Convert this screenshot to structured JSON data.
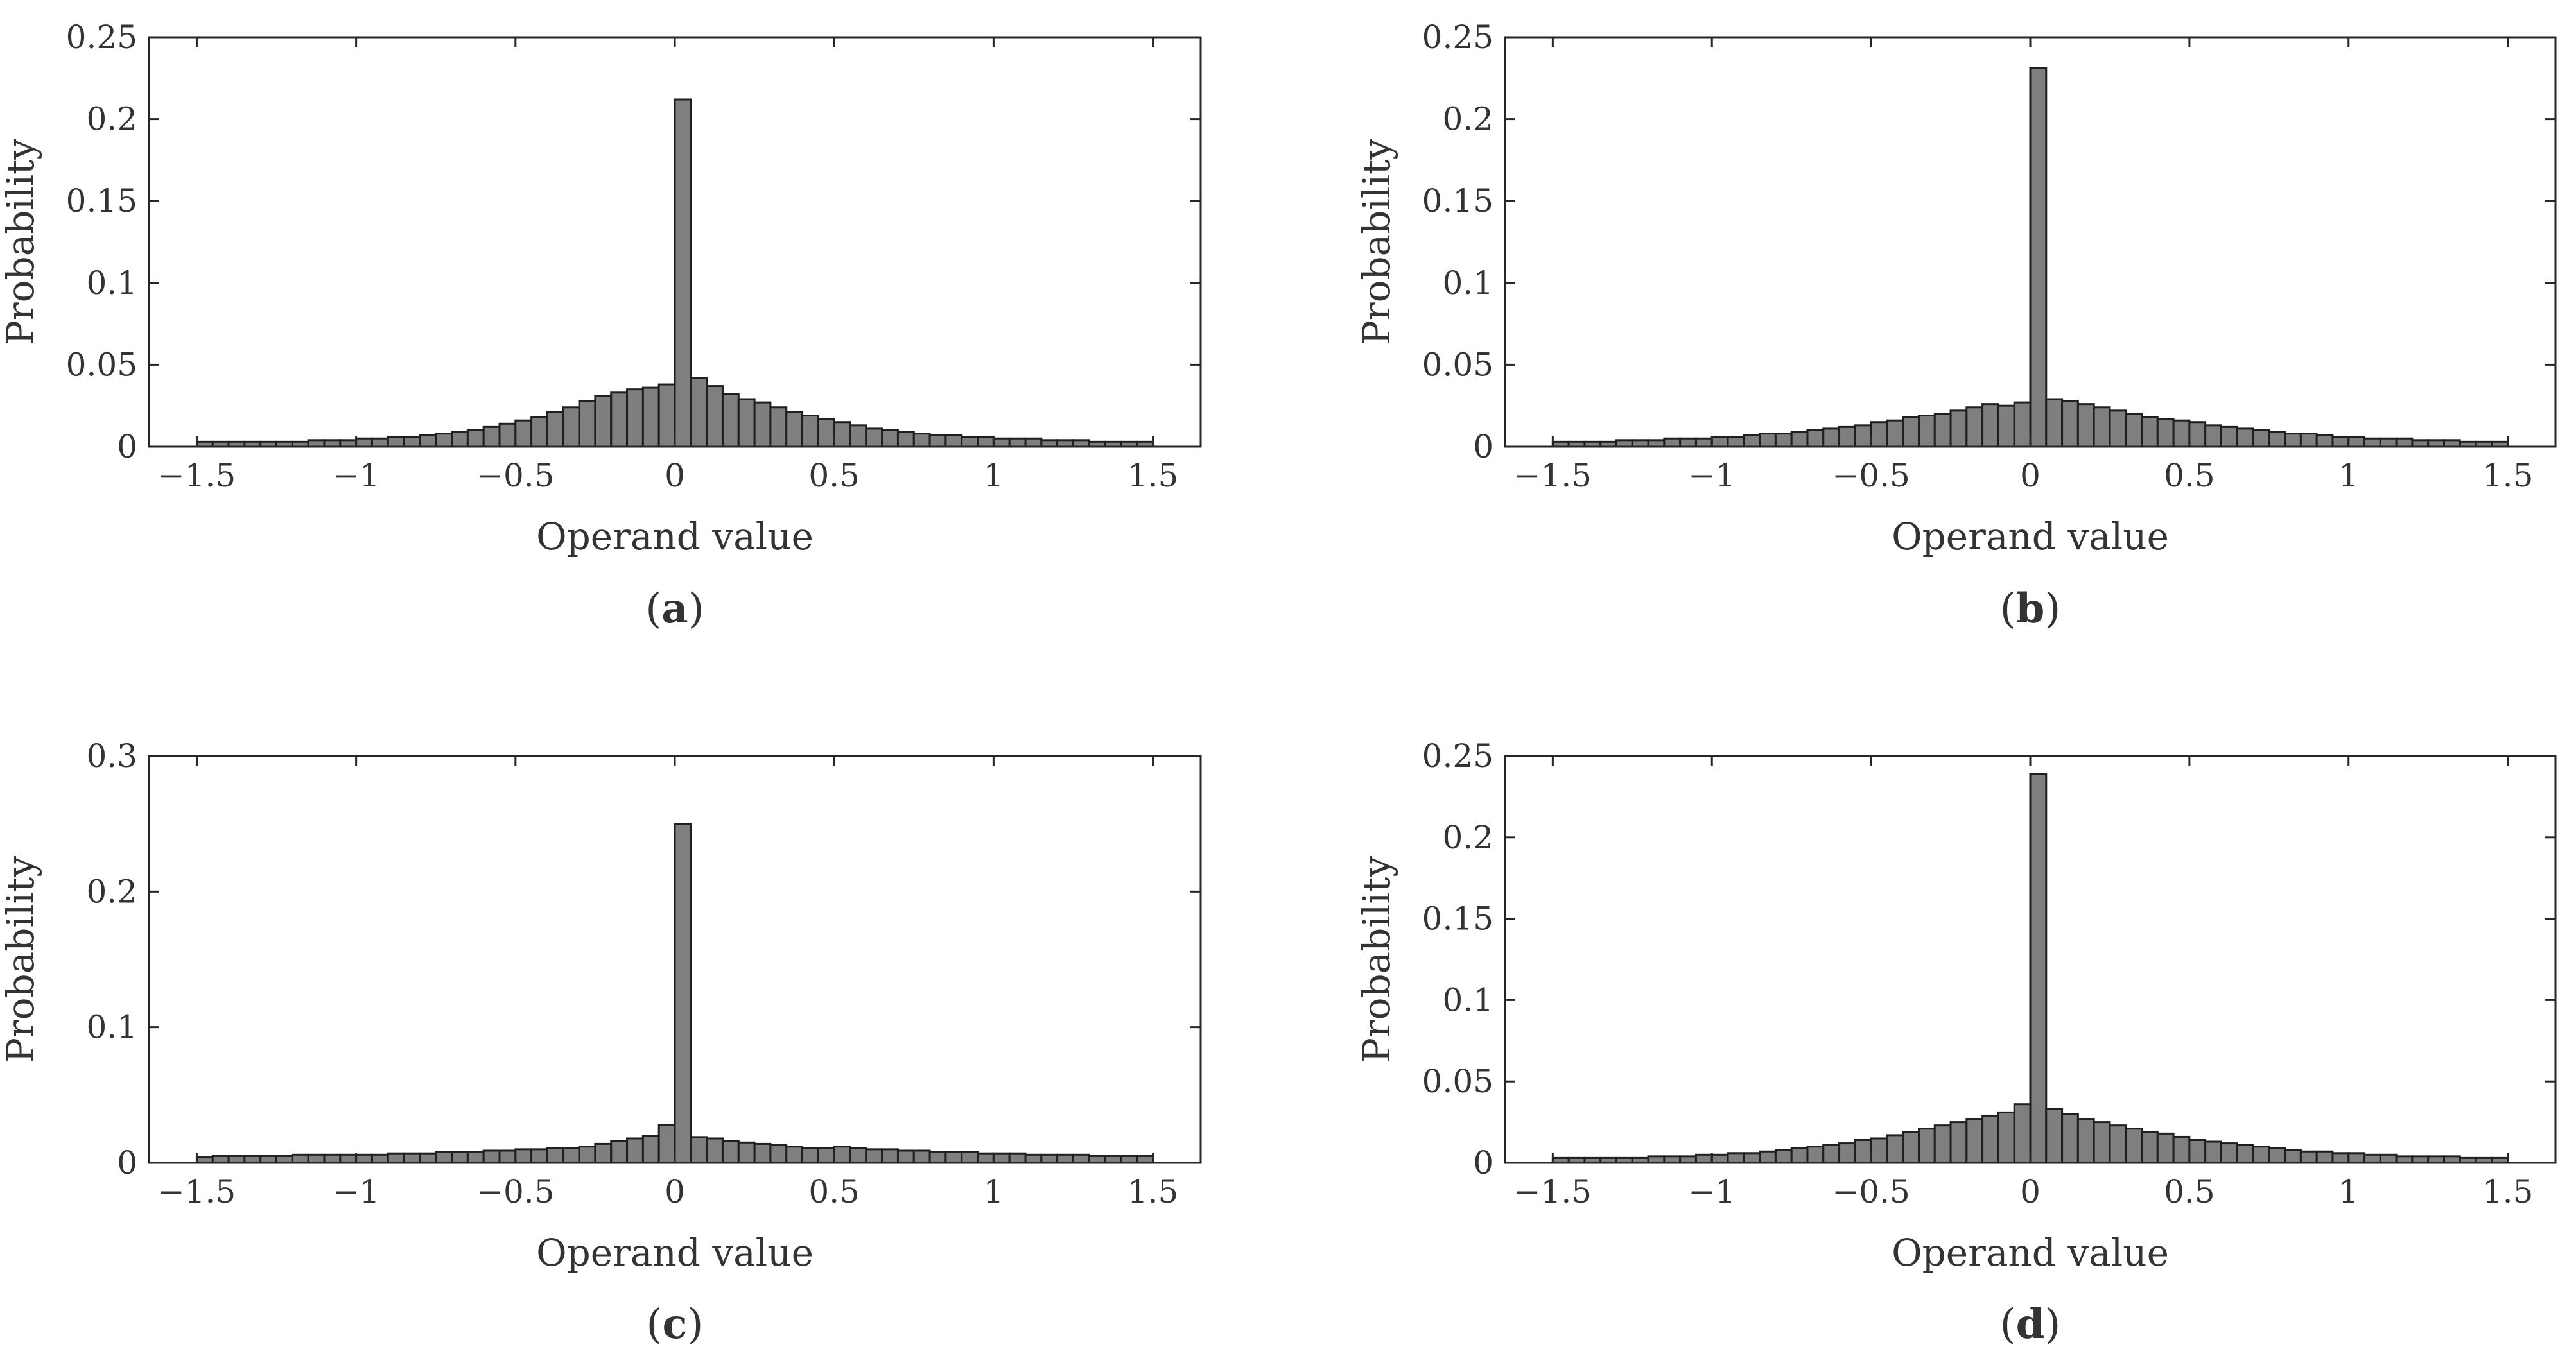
{
  "colors": {
    "bar_fill": "#7f7f7f",
    "bar_edge": "#1f1f1f",
    "axes": "#262626",
    "text": "#333333"
  },
  "chart_data": [
    {
      "type": "bar",
      "panel": "a",
      "panel_label": "a",
      "title": "",
      "xlabel": "Operand value",
      "ylabel": "Probability",
      "xlim": [
        -1.65,
        1.65
      ],
      "ylim": [
        0,
        0.25
      ],
      "xticks": [
        -1.5,
        -1,
        -0.5,
        0,
        0.5,
        1,
        1.5
      ],
      "xtick_labels": [
        "−1.5",
        "−1",
        "−0.5",
        "0",
        "0.5",
        "1",
        "1.5"
      ],
      "yticks": [
        0,
        0.05,
        0.1,
        0.15,
        0.2,
        0.25
      ],
      "ytick_labels": [
        "0",
        "0.05",
        "0.1",
        "0.15",
        "0.2",
        "0.25"
      ],
      "bin_start": -1.5,
      "bin_width": 0.05,
      "values": [
        0.003,
        0.003,
        0.003,
        0.003,
        0.003,
        0.003,
        0.003,
        0.004,
        0.004,
        0.004,
        0.005,
        0.005,
        0.006,
        0.006,
        0.007,
        0.008,
        0.009,
        0.01,
        0.012,
        0.014,
        0.016,
        0.018,
        0.021,
        0.024,
        0.028,
        0.031,
        0.033,
        0.035,
        0.036,
        0.038,
        0.212,
        0.042,
        0.037,
        0.032,
        0.029,
        0.027,
        0.024,
        0.021,
        0.019,
        0.017,
        0.015,
        0.013,
        0.011,
        0.01,
        0.009,
        0.008,
        0.007,
        0.007,
        0.006,
        0.006,
        0.005,
        0.005,
        0.005,
        0.004,
        0.004,
        0.004,
        0.003,
        0.003,
        0.003,
        0.003
      ]
    },
    {
      "type": "bar",
      "panel": "b",
      "panel_label": "b",
      "title": "",
      "xlabel": "Operand value",
      "ylabel": "Probability",
      "xlim": [
        -1.65,
        1.65
      ],
      "ylim": [
        0,
        0.25
      ],
      "xticks": [
        -1.5,
        -1,
        -0.5,
        0,
        0.5,
        1,
        1.5
      ],
      "xtick_labels": [
        "−1.5",
        "−1",
        "−0.5",
        "0",
        "0.5",
        "1",
        "1.5"
      ],
      "yticks": [
        0,
        0.05,
        0.1,
        0.15,
        0.2,
        0.25
      ],
      "ytick_labels": [
        "0",
        "0.05",
        "0.1",
        "0.15",
        "0.2",
        "0.25"
      ],
      "bin_start": -1.5,
      "bin_width": 0.05,
      "values": [
        0.003,
        0.003,
        0.003,
        0.003,
        0.004,
        0.004,
        0.004,
        0.005,
        0.005,
        0.005,
        0.006,
        0.006,
        0.007,
        0.008,
        0.008,
        0.009,
        0.01,
        0.011,
        0.012,
        0.013,
        0.015,
        0.016,
        0.018,
        0.019,
        0.02,
        0.022,
        0.024,
        0.026,
        0.025,
        0.027,
        0.231,
        0.029,
        0.028,
        0.026,
        0.024,
        0.022,
        0.02,
        0.018,
        0.017,
        0.016,
        0.015,
        0.013,
        0.012,
        0.011,
        0.01,
        0.009,
        0.008,
        0.008,
        0.007,
        0.006,
        0.006,
        0.005,
        0.005,
        0.005,
        0.004,
        0.004,
        0.004,
        0.003,
        0.003,
        0.003
      ]
    },
    {
      "type": "bar",
      "panel": "c",
      "panel_label": "c",
      "title": "",
      "xlabel": "Operand value",
      "ylabel": "Probability",
      "xlim": [
        -1.65,
        1.65
      ],
      "ylim": [
        0,
        0.3
      ],
      "xticks": [
        -1.5,
        -1,
        -0.5,
        0,
        0.5,
        1,
        1.5
      ],
      "xtick_labels": [
        "−1.5",
        "−1",
        "−0.5",
        "0",
        "0.5",
        "1",
        "1.5"
      ],
      "yticks": [
        0,
        0.1,
        0.2,
        0.3
      ],
      "ytick_labels": [
        "0",
        "0.1",
        "0.2",
        "0.3"
      ],
      "bin_start": -1.5,
      "bin_width": 0.05,
      "values": [
        0.004,
        0.005,
        0.005,
        0.005,
        0.005,
        0.005,
        0.006,
        0.006,
        0.006,
        0.006,
        0.006,
        0.006,
        0.007,
        0.007,
        0.007,
        0.008,
        0.008,
        0.008,
        0.009,
        0.009,
        0.01,
        0.01,
        0.011,
        0.011,
        0.012,
        0.014,
        0.016,
        0.018,
        0.02,
        0.028,
        0.25,
        0.019,
        0.018,
        0.016,
        0.015,
        0.014,
        0.013,
        0.012,
        0.011,
        0.011,
        0.012,
        0.011,
        0.01,
        0.01,
        0.009,
        0.009,
        0.008,
        0.008,
        0.008,
        0.007,
        0.007,
        0.007,
        0.006,
        0.006,
        0.006,
        0.006,
        0.005,
        0.005,
        0.005,
        0.005
      ]
    },
    {
      "type": "bar",
      "panel": "d",
      "panel_label": "d",
      "title": "",
      "xlabel": "Operand value",
      "ylabel": "Probability",
      "xlim": [
        -1.65,
        1.65
      ],
      "ylim": [
        0,
        0.25
      ],
      "xticks": [
        -1.5,
        -1,
        -0.5,
        0,
        0.5,
        1,
        1.5
      ],
      "xtick_labels": [
        "−1.5",
        "−1",
        "−0.5",
        "0",
        "0.5",
        "1",
        "1.5"
      ],
      "yticks": [
        0,
        0.05,
        0.1,
        0.15,
        0.2,
        0.25
      ],
      "ytick_labels": [
        "0",
        "0.05",
        "0.1",
        "0.15",
        "0.2",
        "0.25"
      ],
      "bin_start": -1.5,
      "bin_width": 0.05,
      "values": [
        0.003,
        0.003,
        0.003,
        0.003,
        0.003,
        0.003,
        0.004,
        0.004,
        0.004,
        0.005,
        0.005,
        0.006,
        0.006,
        0.007,
        0.008,
        0.009,
        0.01,
        0.011,
        0.012,
        0.014,
        0.015,
        0.017,
        0.019,
        0.021,
        0.023,
        0.025,
        0.027,
        0.029,
        0.031,
        0.036,
        0.239,
        0.033,
        0.03,
        0.027,
        0.025,
        0.023,
        0.021,
        0.019,
        0.018,
        0.016,
        0.014,
        0.013,
        0.012,
        0.011,
        0.01,
        0.009,
        0.008,
        0.007,
        0.007,
        0.006,
        0.006,
        0.005,
        0.005,
        0.004,
        0.004,
        0.004,
        0.004,
        0.003,
        0.003,
        0.003
      ]
    }
  ]
}
